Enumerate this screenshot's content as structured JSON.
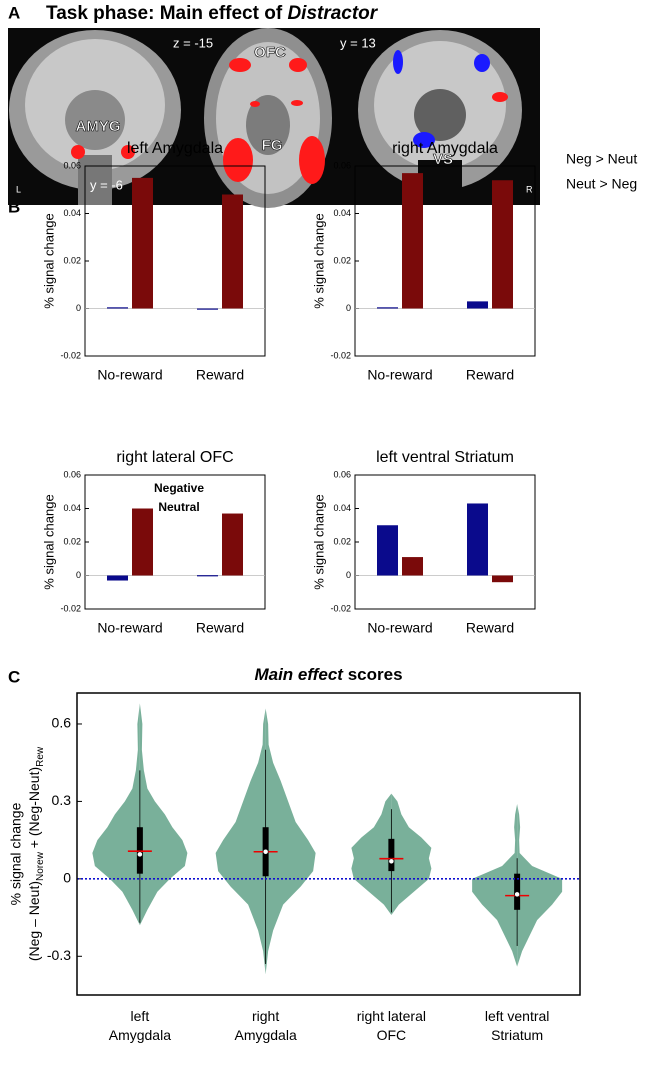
{
  "panel_labels": [
    "A",
    "B",
    "C"
  ],
  "panel_a": {
    "title": "Task phase: Main effect of",
    "title_italic": "Distractor",
    "labels": [
      "z = -15",
      "OFC",
      "y = 13",
      "AMYG",
      "FG",
      "VS",
      "L",
      "y = -6",
      "R"
    ],
    "legend": [
      {
        "text": "Neg > Neut",
        "color": "#ff2020"
      },
      {
        "text": "Neut > Neg",
        "color": "#1a1aff"
      }
    ]
  },
  "chart_data": [
    {
      "type": "bar",
      "title": "left Amygdala",
      "ylabel": "% signal change",
      "categories": [
        "No-reward",
        "Reward"
      ],
      "series": [
        {
          "color": "#0a0a8c",
          "values": [
            0.0005,
            -0.0005
          ]
        },
        {
          "color": "#7a0a0a",
          "values": [
            0.055,
            0.048
          ]
        }
      ],
      "ylim": [
        -0.02,
        0.06
      ],
      "yticks": [
        -0.02,
        0,
        0.02,
        0.04,
        0.06
      ]
    },
    {
      "type": "bar",
      "title": "right Amygdala",
      "ylabel": "% signal change",
      "categories": [
        "No-reward",
        "Reward"
      ],
      "series": [
        {
          "color": "#0a0a8c",
          "values": [
            0.0005,
            0.003
          ]
        },
        {
          "color": "#7a0a0a",
          "values": [
            0.057,
            0.054
          ]
        }
      ],
      "ylim": [
        -0.02,
        0.06
      ],
      "yticks": [
        -0.02,
        0,
        0.02,
        0.04,
        0.06
      ]
    },
    {
      "type": "bar",
      "title": "right lateral OFC",
      "ylabel": "% signal change",
      "categories": [
        "No-reward",
        "Reward"
      ],
      "series": [
        {
          "name": "Neutral",
          "color": "#0a0a8c",
          "values": [
            -0.003,
            0.0002
          ]
        },
        {
          "name": "Negative",
          "color": "#7a0a0a",
          "values": [
            0.04,
            0.037
          ]
        }
      ],
      "ylim": [
        -0.02,
        0.06
      ],
      "yticks": [
        -0.02,
        0,
        0.02,
        0.04,
        0.06
      ],
      "legend": "top"
    },
    {
      "type": "bar",
      "title": "left ventral Striatum",
      "ylabel": "% signal change",
      "categories": [
        "No-reward",
        "Reward"
      ],
      "series": [
        {
          "color": "#0a0a8c",
          "values": [
            0.03,
            0.043
          ]
        },
        {
          "color": "#7a0a0a",
          "values": [
            0.011,
            -0.004
          ]
        }
      ],
      "ylim": [
        -0.02,
        0.06
      ],
      "yticks": [
        -0.02,
        0,
        0.02,
        0.04,
        0.06
      ]
    },
    {
      "type": "violin",
      "title_italic": "Main effect",
      "title": "scores",
      "ylabel": [
        "% signal change",
        [
          "(Neg – Neut)",
          "Norew",
          " + (Neg-Neut)",
          "Rew"
        ]
      ],
      "categories": [
        [
          "left",
          "Amygdala"
        ],
        [
          "right",
          "Amygdala"
        ],
        [
          "right lateral",
          "OFC"
        ],
        [
          "left ventral",
          "Striatum"
        ]
      ],
      "color": "#79b09a",
      "hline": 0,
      "hline_color": "#1010d0",
      "ylim": [
        -0.45,
        0.72
      ],
      "yticks": [
        -0.3,
        0,
        0.3,
        0.6
      ],
      "violins": [
        {
          "profile_y": [
            -0.18,
            -0.12,
            -0.05,
            0,
            0.05,
            0.1,
            0.15,
            0.2,
            0.25,
            0.3,
            0.35,
            0.42,
            0.5,
            0.6,
            0.68
          ],
          "profile_w": [
            0,
            0.15,
            0.35,
            0.6,
            0.9,
            0.95,
            0.85,
            0.65,
            0.5,
            0.3,
            0.15,
            0.08,
            0.04,
            0.05,
            0
          ],
          "whisker_min": -0.17,
          "whisker_max": 0.42,
          "q1": 0.02,
          "q3": 0.2,
          "mean": 0.107,
          "median": 0.095
        },
        {
          "profile_y": [
            -0.37,
            -0.28,
            -0.2,
            -0.1,
            -0.03,
            0.03,
            0.1,
            0.15,
            0.22,
            0.3,
            0.38,
            0.45,
            0.52,
            0.6,
            0.66
          ],
          "profile_w": [
            0,
            0.05,
            0.15,
            0.35,
            0.7,
            0.95,
            1.0,
            0.85,
            0.6,
            0.45,
            0.3,
            0.15,
            0.06,
            0.05,
            0
          ],
          "whisker_min": -0.33,
          "whisker_max": 0.5,
          "q1": 0.01,
          "q3": 0.2,
          "mean": 0.105,
          "median": 0.105
        },
        {
          "profile_y": [
            -0.14,
            -0.1,
            -0.05,
            0,
            0.04,
            0.08,
            0.12,
            0.16,
            0.2,
            0.25,
            0.3,
            0.33
          ],
          "profile_w": [
            0,
            0.15,
            0.45,
            0.75,
            0.8,
            0.75,
            0.8,
            0.6,
            0.35,
            0.2,
            0.12,
            0
          ],
          "whisker_min": -0.13,
          "whisker_max": 0.27,
          "q1": 0.03,
          "q3": 0.155,
          "mean": 0.078,
          "median": 0.068
        },
        {
          "profile_y": [
            -0.34,
            -0.28,
            -0.22,
            -0.16,
            -0.1,
            -0.05,
            0,
            0.05,
            0.1,
            0.15,
            0.2,
            0.25,
            0.29
          ],
          "profile_w": [
            0,
            0.1,
            0.25,
            0.4,
            0.7,
            0.9,
            0.9,
            0.3,
            0.05,
            0.04,
            0.06,
            0.04,
            0
          ],
          "whisker_min": -0.26,
          "whisker_max": 0.08,
          "q1": -0.12,
          "q3": 0.02,
          "mean": -0.065,
          "median": -0.06
        }
      ]
    }
  ]
}
